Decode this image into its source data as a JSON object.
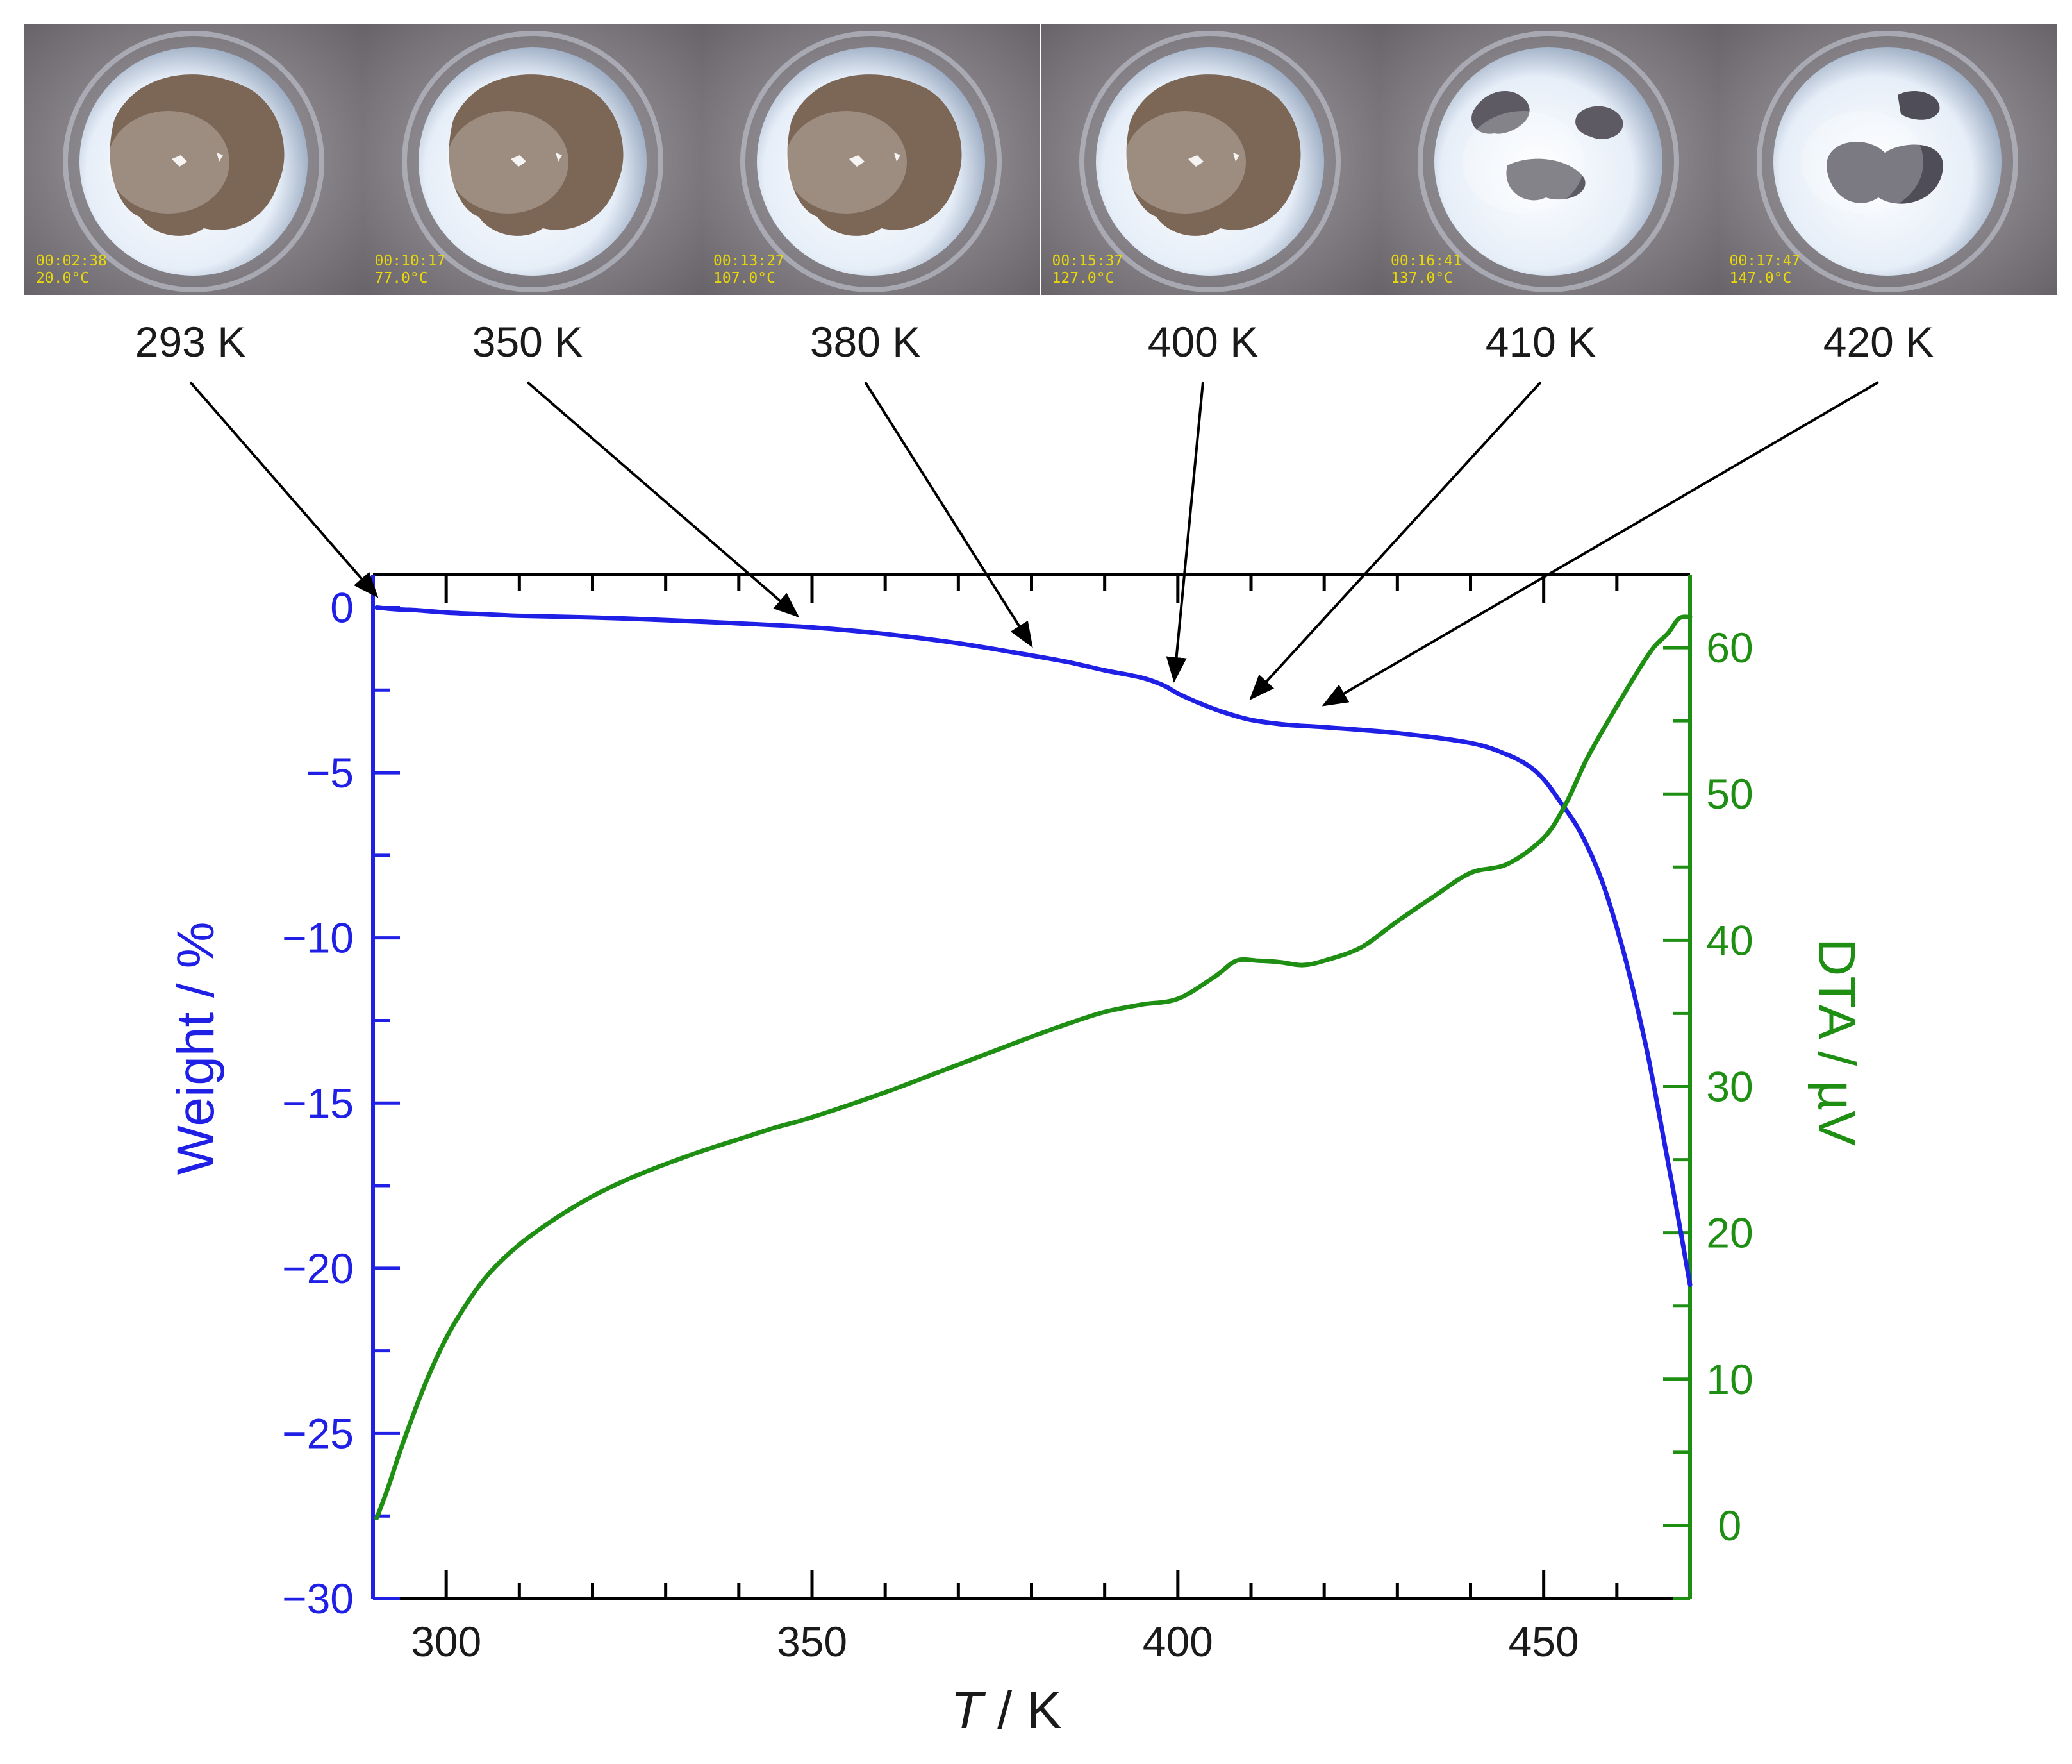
{
  "photos": [
    {
      "time": "00:02:38",
      "temp": "20.0°C",
      "label": "293 K",
      "stage": "powder",
      "points_to": 293
    },
    {
      "time": "00:10:17",
      "temp": "77.0°C",
      "label": "350 K",
      "stage": "powder",
      "points_to": 350
    },
    {
      "time": "00:13:27",
      "temp": "107.0°C",
      "label": "380 K",
      "stage": "powder",
      "points_to": 380
    },
    {
      "time": "00:15:37",
      "temp": "127.0°C",
      "label": "400 K",
      "stage": "powder",
      "points_to": 400
    },
    {
      "time": "00:16:41",
      "temp": "137.0°C",
      "label": "410 K",
      "stage": "melting",
      "points_to": 410
    },
    {
      "time": "00:17:47",
      "temp": "147.0°C",
      "label": "420 K",
      "stage": "molten",
      "points_to": 420
    }
  ],
  "colors": {
    "weight": "#1f1fe6",
    "dta": "#1f8f14",
    "axis": "#000000",
    "stamp": "#e8d80a"
  },
  "chart_data": {
    "type": "line",
    "xlabel_italic": "T",
    "xlabel_unit": " / K",
    "ylabel_left": "Weight / %",
    "ylabel_right": "DTA / µV",
    "xlim": [
      290,
      470
    ],
    "ylim_left": [
      -30,
      1
    ],
    "ylim_right": [
      -5,
      65
    ],
    "x_ticks": [
      300,
      350,
      400,
      450
    ],
    "x_tick_labels": [
      "300",
      "350",
      "400",
      "450"
    ],
    "left_ticks": [
      0,
      -5,
      -10,
      -15,
      -20,
      -25,
      -30
    ],
    "left_tick_labels": [
      "0",
      "−5",
      "−10",
      "−15",
      "−20",
      "−25",
      "−30"
    ],
    "right_ticks": [
      0,
      10,
      20,
      30,
      40,
      50,
      60
    ],
    "right_tick_labels": [
      "0",
      "10",
      "20",
      "30",
      "40",
      "50",
      "60"
    ],
    "series": [
      {
        "name": "Weight",
        "axis": "left",
        "x": [
          290.5,
          293,
          296,
          300,
          305,
          310,
          320,
          330,
          340,
          350,
          360,
          370,
          380,
          385,
          390,
          395,
          398,
          400,
          403,
          406,
          410,
          415,
          420,
          430,
          440,
          445,
          448,
          450,
          452,
          455,
          458,
          461,
          464,
          466,
          468,
          470
        ],
        "y": [
          0.0,
          -0.05,
          -0.08,
          -0.15,
          -0.2,
          -0.25,
          -0.3,
          -0.38,
          -0.48,
          -0.6,
          -0.8,
          -1.08,
          -1.45,
          -1.65,
          -1.9,
          -2.12,
          -2.35,
          -2.6,
          -2.9,
          -3.15,
          -3.4,
          -3.55,
          -3.62,
          -3.8,
          -4.1,
          -4.45,
          -4.8,
          -5.2,
          -5.8,
          -6.8,
          -8.3,
          -10.5,
          -13.3,
          -15.6,
          -18.0,
          -20.5
        ]
      },
      {
        "name": "DTA",
        "axis": "right",
        "x": [
          290.5,
          292,
          294,
          297,
          300,
          303,
          306,
          310,
          315,
          320,
          325,
          330,
          335,
          340,
          345,
          350,
          360,
          370,
          380,
          385,
          390,
          395,
          400,
          405,
          408,
          411,
          414,
          417,
          420,
          425,
          430,
          435,
          440,
          445,
          450,
          453,
          456,
          460,
          463,
          465,
          467,
          468.5,
          470
        ],
        "y": [
          0.5,
          2.5,
          5.5,
          9.5,
          12.8,
          15.3,
          17.3,
          19.2,
          21.0,
          22.5,
          23.7,
          24.7,
          25.6,
          26.4,
          27.2,
          27.9,
          29.6,
          31.5,
          33.4,
          34.3,
          35.1,
          35.6,
          36.0,
          37.5,
          38.6,
          38.6,
          38.5,
          38.3,
          38.6,
          39.5,
          41.3,
          43.0,
          44.6,
          45.2,
          47.0,
          49.3,
          52.5,
          56.0,
          58.5,
          60.0,
          61.0,
          62.0,
          62.1
        ]
      }
    ],
    "arrow_targets": [
      {
        "x": 290.5,
        "y": 0.35
      },
      {
        "x": 348,
        "y": -0.25
      },
      {
        "x": 380,
        "y": -1.15
      },
      {
        "x": 399.5,
        "y": -2.2
      },
      {
        "x": 410,
        "y": -2.75
      },
      {
        "x": 420,
        "y": -2.95
      }
    ]
  }
}
